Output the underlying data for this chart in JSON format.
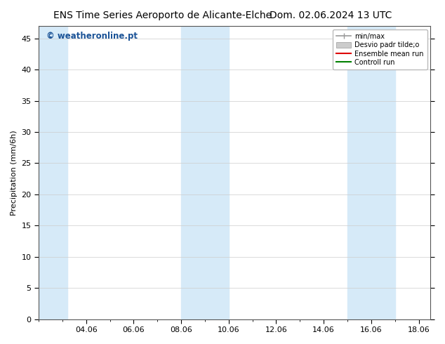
{
  "title_left": "ENS Time Series Aeroporto de Alicante-Elche",
  "title_right": "Dom. 02.06.2024 13 UTC",
  "ylabel": "Precipitation (mm/6h)",
  "xlabel": "",
  "xlim_start": 2,
  "xlim_end": 18.5,
  "ylim": [
    0,
    47
  ],
  "yticks": [
    0,
    5,
    10,
    15,
    20,
    25,
    30,
    35,
    40,
    45
  ],
  "xtick_labels": [
    "04.06",
    "06.06",
    "08.06",
    "10.06",
    "12.06",
    "14.06",
    "16.06",
    "18.06"
  ],
  "xtick_positions": [
    4,
    6,
    8,
    10,
    12,
    14,
    16,
    18
  ],
  "shaded_bands": [
    {
      "x_start": 2.0,
      "x_end": 3.2,
      "color": "#d6eaf8"
    },
    {
      "x_start": 8.0,
      "x_end": 10.0,
      "color": "#d6eaf8"
    },
    {
      "x_start": 15.0,
      "x_end": 17.0,
      "color": "#d6eaf8"
    }
  ],
  "watermark_text": "© weatheronline.pt",
  "watermark_color": "#1a5296",
  "background_color": "#ffffff",
  "legend_items": [
    {
      "label": "min/max",
      "type": "errbar",
      "color": "#999999"
    },
    {
      "label": "Desvio padr tilde;o",
      "type": "patch",
      "color": "#cccccc"
    },
    {
      "label": "Ensemble mean run",
      "type": "line",
      "color": "#dd0000"
    },
    {
      "label": "Controll run",
      "type": "line",
      "color": "#008000"
    }
  ],
  "title_fontsize": 10,
  "axis_label_fontsize": 8,
  "tick_fontsize": 8,
  "watermark_fontsize": 8.5
}
